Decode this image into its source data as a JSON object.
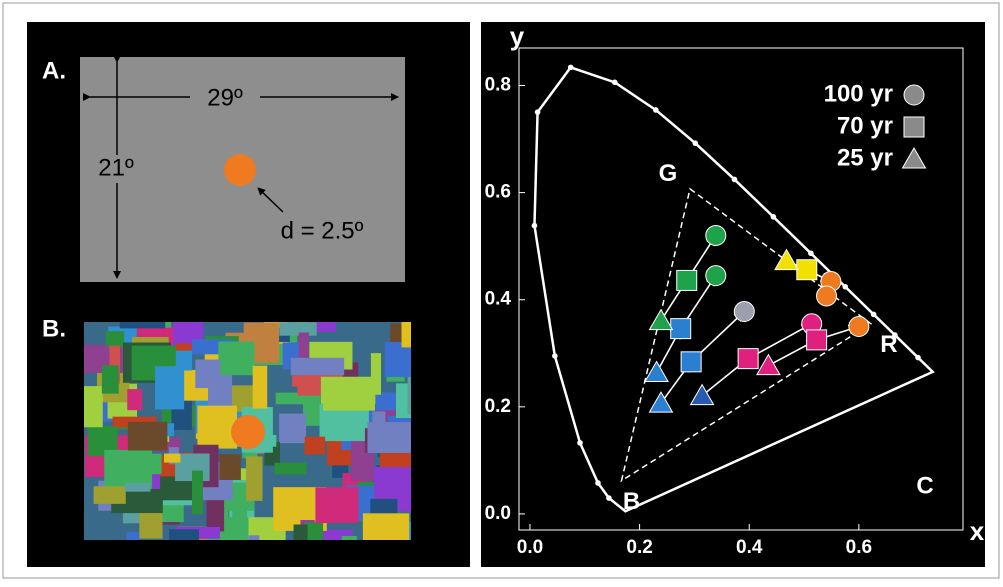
{
  "panel_a": {
    "label": "A.",
    "width": "29º",
    "height": "21º",
    "diameter": "d = 2.5º"
  },
  "panel_b": {
    "label": "B."
  },
  "chart_data": {
    "type": "scatter",
    "x_label": "x",
    "y_label": "y",
    "xlim": [
      -0.02,
      0.79
    ],
    "ylim": [
      -0.03,
      0.87
    ],
    "xticks": [
      {
        "value": 0,
        "label": "0.0"
      },
      0.2,
      0.4,
      0.6
    ],
    "yticks": [
      {
        "value": 0,
        "label": "0.0"
      },
      0.2,
      0.4,
      0.6,
      0.8
    ],
    "spectral_locus": {
      "color": "#ffffff",
      "x": [
        0.1741,
        0.144,
        0.1241,
        0.0913,
        0.0454,
        0.0082,
        0.0139,
        0.0743,
        0.1547,
        0.2296,
        0.3016,
        0.3731,
        0.4441,
        0.5125,
        0.5752,
        0.627,
        0.6658,
        0.7079,
        0.7347
      ],
      "y": [
        0.005,
        0.0297,
        0.0578,
        0.1327,
        0.295,
        0.5384,
        0.7502,
        0.8338,
        0.8059,
        0.7543,
        0.6923,
        0.6245,
        0.5547,
        0.4866,
        0.4242,
        0.3725,
        0.334,
        0.292,
        0.2653
      ]
    },
    "gamut": {
      "color": "#ffffff",
      "x": [
        0.292,
        0.622,
        0.167
      ],
      "y": [
        0.607,
        0.355,
        0.062
      ],
      "vertex_labels": [
        "G",
        "R",
        "B"
      ]
    },
    "annotation": "C",
    "series": [
      {
        "name": "100 yr",
        "marker": "circle",
        "color": "#8a8a8a",
        "x": [
          0.339,
          0.339,
          0.391,
          0.514,
          0.549,
          0.541,
          0.6
        ],
        "y": [
          0.52,
          0.445,
          0.378,
          0.355,
          0.434,
          0.407,
          0.35
        ],
        "colors": [
          "#1fa34a",
          "#1fa34a",
          "#9aa0ad",
          "#e0207f",
          "#f07a20",
          "#f07a20",
          "#f07a20"
        ]
      },
      {
        "name": "70 yr",
        "marker": "square",
        "color": "#8a8a8a",
        "x": [
          0.286,
          0.275,
          0.294,
          0.398,
          0.523,
          0.505
        ],
        "y": [
          0.436,
          0.346,
          0.284,
          0.29,
          0.325,
          0.456
        ],
        "colors": [
          "#1fa34a",
          "#2a7fd0",
          "#2a7fd0",
          "#e0207f",
          "#e0207f",
          "#f2e000"
        ]
      },
      {
        "name": "25 yr",
        "marker": "triangle",
        "color": "#8a8a8a",
        "x": [
          0.239,
          0.231,
          0.239,
          0.314,
          0.435,
          0.468
        ],
        "y": [
          0.361,
          0.264,
          0.207,
          0.221,
          0.277,
          0.473
        ],
        "colors": [
          "#1fa34a",
          "#2a7fd0",
          "#2a7fd0",
          "#2a5ab0",
          "#e0207f",
          "#f2e000"
        ]
      }
    ]
  }
}
